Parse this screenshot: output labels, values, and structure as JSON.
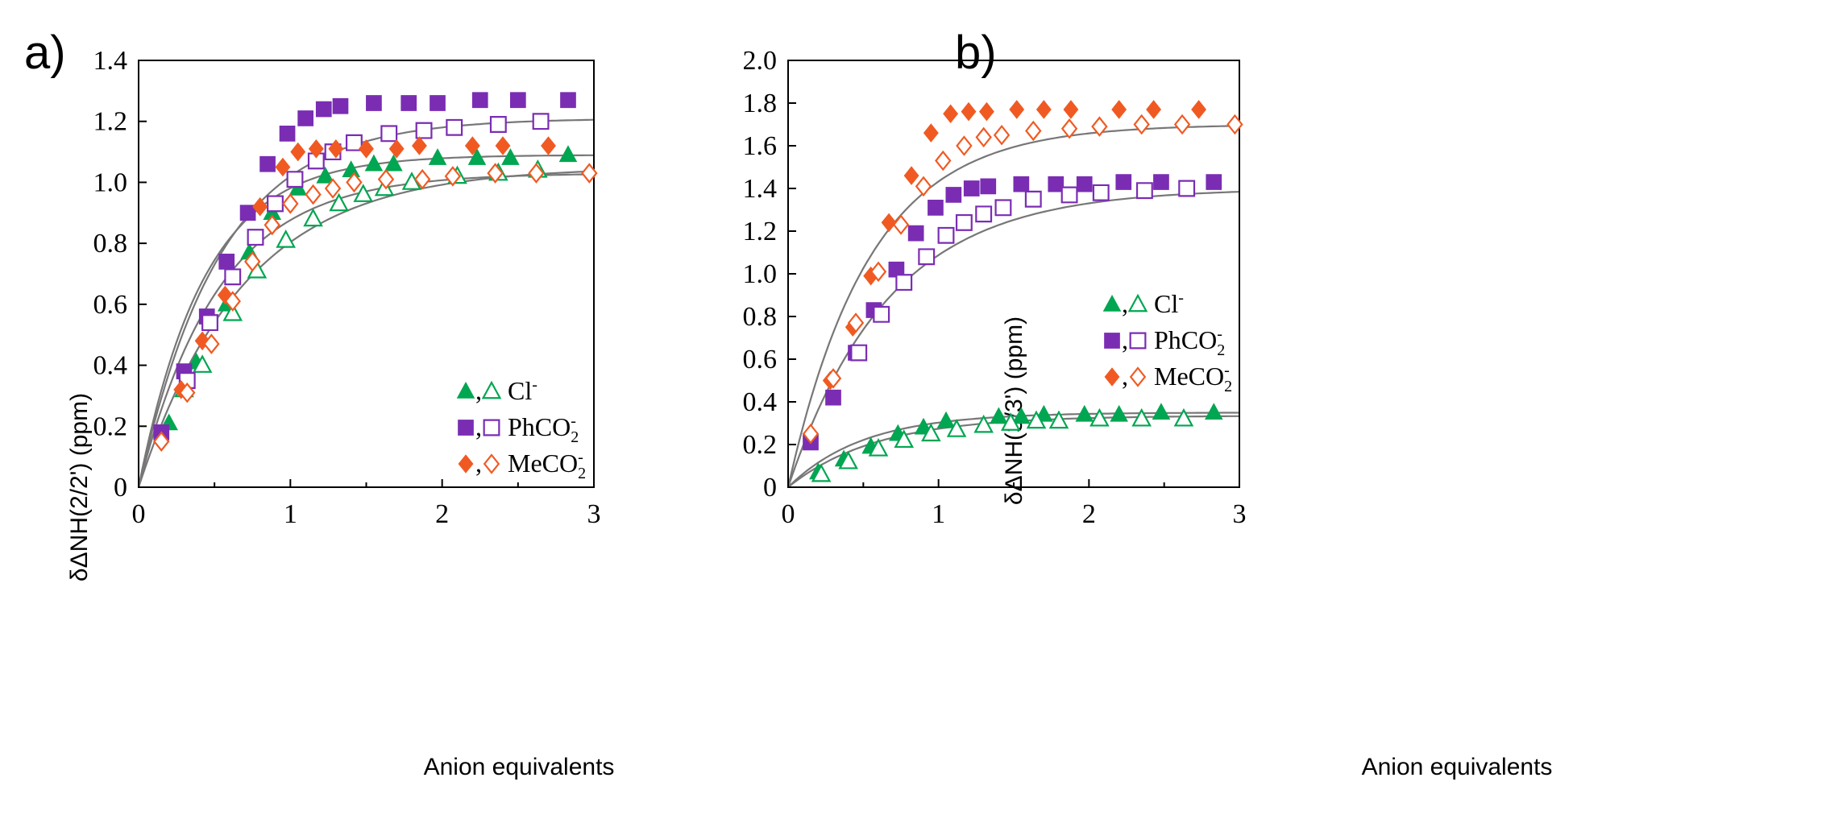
{
  "chart_data": [
    {
      "panel": "a)",
      "type": "scatter",
      "xlabel": "Anion equivalents",
      "ylabel": "δΔNH(2/2') (ppm)",
      "xlim": [
        0,
        3
      ],
      "ylim": [
        0,
        1.4
      ],
      "xticks": [
        "0",
        "1",
        "2",
        "3"
      ],
      "yticks": [
        "0",
        "0.2",
        "0.4",
        "0.6",
        "0.8",
        "1.0",
        "1.2",
        "1.4"
      ],
      "legend_position": "bottom-right",
      "legend": [
        {
          "label": "Cl",
          "sup": "-",
          "sub": "",
          "color": "#00a651",
          "filled_shape": "triangle",
          "open_shape": "triangle"
        },
        {
          "label": "PhCO",
          "sup": "-",
          "sub": "2",
          "color": "#7a2db3",
          "filled_shape": "square",
          "open_shape": "square"
        },
        {
          "label": "MeCO",
          "sup": "-",
          "sub": "2",
          "color": "#f05a22",
          "filled_shape": "diamond",
          "open_shape": "diamond"
        }
      ],
      "series": [
        {
          "name": "Cl- filled",
          "color": "#00a651",
          "shape": "triangle",
          "filled": true,
          "x": [
            0.2,
            0.38,
            0.58,
            0.73,
            0.88,
            1.05,
            1.23,
            1.4,
            1.55,
            1.68,
            1.97,
            2.23,
            2.45,
            2.83
          ],
          "y": [
            0.21,
            0.41,
            0.6,
            0.77,
            0.9,
            0.98,
            1.02,
            1.04,
            1.06,
            1.06,
            1.08,
            1.08,
            1.08,
            1.09
          ]
        },
        {
          "name": "Cl- open",
          "color": "#00a651",
          "shape": "triangle",
          "filled": false,
          "x": [
            0.3,
            0.42,
            0.62,
            0.78,
            0.97,
            1.15,
            1.32,
            1.48,
            1.62,
            1.8,
            2.1,
            2.37,
            2.63
          ],
          "y": [
            0.32,
            0.4,
            0.57,
            0.71,
            0.81,
            0.88,
            0.93,
            0.96,
            0.98,
            1.0,
            1.02,
            1.03,
            1.04
          ]
        },
        {
          "name": "PhCO2- filled",
          "color": "#7a2db3",
          "shape": "square",
          "filled": true,
          "x": [
            0.15,
            0.3,
            0.45,
            0.58,
            0.72,
            0.85,
            0.98,
            1.1,
            1.22,
            1.33,
            1.55,
            1.78,
            1.97,
            2.25,
            2.5,
            2.83
          ],
          "y": [
            0.18,
            0.38,
            0.56,
            0.74,
            0.9,
            1.06,
            1.16,
            1.21,
            1.24,
            1.25,
            1.26,
            1.26,
            1.26,
            1.27,
            1.27,
            1.27
          ]
        },
        {
          "name": "PhCO2- open",
          "color": "#7a2db3",
          "shape": "square",
          "filled": false,
          "x": [
            0.32,
            0.47,
            0.62,
            0.77,
            0.9,
            1.03,
            1.17,
            1.28,
            1.42,
            1.65,
            1.88,
            2.08,
            2.37,
            2.65
          ],
          "y": [
            0.35,
            0.54,
            0.69,
            0.82,
            0.93,
            1.01,
            1.07,
            1.1,
            1.13,
            1.16,
            1.17,
            1.18,
            1.19,
            1.2
          ]
        },
        {
          "name": "MeCO2- filled",
          "color": "#f05a22",
          "shape": "diamond",
          "filled": true,
          "x": [
            0.28,
            0.42,
            0.57,
            0.8,
            0.95,
            1.05,
            1.17,
            1.3,
            1.5,
            1.7,
            1.85,
            2.2,
            2.4,
            2.7
          ],
          "y": [
            0.32,
            0.48,
            0.63,
            0.92,
            1.05,
            1.1,
            1.11,
            1.11,
            1.11,
            1.11,
            1.12,
            1.12,
            1.12,
            1.12
          ]
        },
        {
          "name": "MeCO2- open",
          "color": "#f05a22",
          "shape": "diamond",
          "filled": false,
          "x": [
            0.15,
            0.32,
            0.48,
            0.62,
            0.75,
            0.88,
            1.0,
            1.15,
            1.28,
            1.42,
            1.63,
            1.87,
            2.07,
            2.35,
            2.62,
            2.97
          ],
          "y": [
            0.15,
            0.31,
            0.47,
            0.61,
            0.74,
            0.86,
            0.93,
            0.96,
            0.98,
            1.0,
            1.01,
            1.01,
            1.02,
            1.03,
            1.03,
            1.03
          ]
        }
      ],
      "fit_curves": [
        {
          "plateau": 1.09,
          "k": 2.3
        },
        {
          "plateau": 1.05,
          "k": 1.45
        },
        {
          "plateau": 1.21,
          "k": 1.85
        },
        {
          "plateau": 1.03,
          "k": 1.9
        }
      ]
    },
    {
      "panel": "b)",
      "type": "scatter",
      "xlabel": "Anion equivalents",
      "ylabel": "δΔNH(3/3') (ppm)",
      "xlim": [
        0,
        3
      ],
      "ylim": [
        0,
        2.0
      ],
      "xticks": [
        "0",
        "1",
        "2",
        "3"
      ],
      "yticks": [
        "0",
        "0.2",
        "0.4",
        "0.6",
        "0.8",
        "1.0",
        "1.2",
        "1.4",
        "1.6",
        "1.8",
        "2.0"
      ],
      "legend_position": "middle-right",
      "legend": [
        {
          "label": "Cl",
          "sup": "-",
          "sub": "",
          "color": "#00a651",
          "filled_shape": "triangle",
          "open_shape": "triangle"
        },
        {
          "label": "PhCO",
          "sup": "-",
          "sub": "2",
          "color": "#7a2db3",
          "filled_shape": "square",
          "open_shape": "square"
        },
        {
          "label": "MeCO",
          "sup": "-",
          "sub": "2",
          "color": "#f05a22",
          "filled_shape": "diamond",
          "open_shape": "diamond"
        }
      ],
      "series": [
        {
          "name": "Cl- filled",
          "color": "#00a651",
          "shape": "triangle",
          "filled": true,
          "x": [
            0.2,
            0.37,
            0.55,
            0.73,
            0.9,
            1.05,
            1.4,
            1.55,
            1.7,
            1.97,
            2.2,
            2.48,
            2.83
          ],
          "y": [
            0.07,
            0.13,
            0.19,
            0.25,
            0.28,
            0.31,
            0.33,
            0.33,
            0.34,
            0.34,
            0.34,
            0.35,
            0.35
          ]
        },
        {
          "name": "Cl- open",
          "color": "#00a651",
          "shape": "triangle",
          "filled": false,
          "x": [
            0.22,
            0.4,
            0.6,
            0.77,
            0.95,
            1.12,
            1.3,
            1.48,
            1.65,
            1.8,
            2.07,
            2.35,
            2.63
          ],
          "y": [
            0.06,
            0.12,
            0.18,
            0.22,
            0.25,
            0.27,
            0.29,
            0.3,
            0.31,
            0.31,
            0.32,
            0.32,
            0.32
          ]
        },
        {
          "name": "PhCO2- filled",
          "color": "#7a2db3",
          "shape": "square",
          "filled": true,
          "x": [
            0.15,
            0.3,
            0.45,
            0.57,
            0.72,
            0.85,
            0.98,
            1.1,
            1.22,
            1.33,
            1.55,
            1.78,
            1.97,
            2.23,
            2.48,
            2.83
          ],
          "y": [
            0.21,
            0.42,
            0.63,
            0.83,
            1.02,
            1.19,
            1.31,
            1.37,
            1.4,
            1.41,
            1.42,
            1.42,
            1.42,
            1.43,
            1.43,
            1.43
          ]
        },
        {
          "name": "PhCO2- open",
          "color": "#7a2db3",
          "shape": "square",
          "filled": false,
          "x": [
            0.47,
            0.62,
            0.77,
            0.92,
            1.05,
            1.17,
            1.3,
            1.43,
            1.63,
            1.87,
            2.08,
            2.37,
            2.65
          ],
          "y": [
            0.63,
            0.81,
            0.96,
            1.08,
            1.18,
            1.24,
            1.28,
            1.31,
            1.35,
            1.37,
            1.38,
            1.39,
            1.4
          ]
        },
        {
          "name": "MeCO2- filled",
          "color": "#f05a22",
          "shape": "diamond",
          "filled": true,
          "x": [
            0.28,
            0.43,
            0.55,
            0.67,
            0.82,
            0.95,
            1.08,
            1.2,
            1.32,
            1.52,
            1.7,
            1.88,
            2.2,
            2.43,
            2.73
          ],
          "y": [
            0.5,
            0.75,
            0.99,
            1.24,
            1.46,
            1.66,
            1.75,
            1.76,
            1.76,
            1.77,
            1.77,
            1.77,
            1.77,
            1.77,
            1.77
          ]
        },
        {
          "name": "MeCO2- open",
          "color": "#f05a22",
          "shape": "diamond",
          "filled": false,
          "x": [
            0.15,
            0.3,
            0.45,
            0.6,
            0.75,
            0.9,
            1.03,
            1.17,
            1.3,
            1.42,
            1.63,
            1.87,
            2.07,
            2.35,
            2.62,
            2.97
          ],
          "y": [
            0.25,
            0.51,
            0.77,
            1.01,
            1.23,
            1.41,
            1.53,
            1.6,
            1.64,
            1.65,
            1.67,
            1.68,
            1.69,
            1.7,
            1.7,
            1.7
          ]
        }
      ],
      "fit_curves": [
        {
          "plateau": 0.35,
          "k": 2.0
        },
        {
          "plateau": 0.335,
          "k": 1.7
        },
        {
          "plateau": 1.4,
          "k": 1.5
        },
        {
          "plateau": 1.7,
          "k": 1.85
        }
      ]
    }
  ],
  "colors": {
    "cl": "#00a651",
    "phco2": "#7a2db3",
    "meco2": "#f05a22",
    "fit_line": "#777777",
    "axis": "#000000"
  }
}
